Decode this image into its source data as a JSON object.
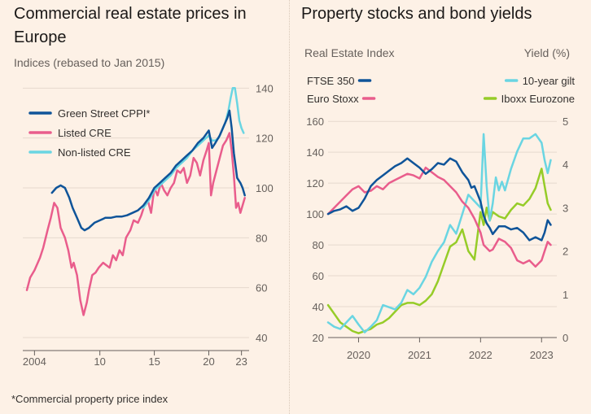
{
  "chart_data": [
    {
      "type": "line",
      "title": "Commercial real estate prices in Europe",
      "subtitle": "Indices (rebased to Jan 2015)",
      "note": "*Commercial property price index",
      "y_axis": "right",
      "ylim": [
        40,
        145
      ],
      "yticks": [
        40,
        60,
        80,
        100,
        120,
        140
      ],
      "xlim": [
        2003.3,
        2023.4
      ],
      "xticks": [
        {
          "value": 2004,
          "label": "2004"
        },
        {
          "value": 2010,
          "label": "10"
        },
        {
          "value": 2015,
          "label": "15"
        },
        {
          "value": 2020,
          "label": "20"
        },
        {
          "value": 2023,
          "label": "23"
        }
      ],
      "series": [
        {
          "name": "Green Street CPPI*",
          "color": "#0f5499",
          "x": [
            2005.6,
            2006.0,
            2006.4,
            2006.8,
            2007.2,
            2007.5,
            2007.9,
            2008.3,
            2008.6,
            2009.0,
            2009.5,
            2010.0,
            2010.5,
            2011.0,
            2011.5,
            2012.0,
            2012.5,
            2013.0,
            2013.5,
            2014.0,
            2014.5,
            2015.0,
            2015.5,
            2016.0,
            2016.5,
            2017.0,
            2017.5,
            2018.0,
            2018.5,
            2019.0,
            2019.5,
            2020.0,
            2020.3,
            2020.6,
            2021.0,
            2021.4,
            2021.7,
            2021.9,
            2022.1,
            2022.3,
            2022.6,
            2022.9,
            2023.1,
            2023.3
          ],
          "values": [
            98,
            100,
            101,
            100,
            96,
            92,
            88,
            84,
            83,
            84,
            86,
            87,
            88,
            88,
            88.5,
            88.5,
            89,
            90,
            91,
            93,
            96,
            100,
            102,
            104,
            106,
            109,
            111,
            113,
            115,
            118,
            120,
            123,
            116,
            118,
            121,
            125,
            128,
            131,
            124,
            114,
            104,
            102,
            100,
            97
          ]
        },
        {
          "name": "Listed CRE",
          "color": "#e95d8c",
          "x": [
            2003.3,
            2003.6,
            2004.0,
            2004.5,
            2004.8,
            2005.2,
            2005.5,
            2005.8,
            2006.1,
            2006.4,
            2006.8,
            2007.1,
            2007.4,
            2007.6,
            2007.9,
            2008.2,
            2008.5,
            2008.8,
            2009.0,
            2009.3,
            2009.6,
            2009.9,
            2010.3,
            2010.6,
            2010.9,
            2011.2,
            2011.5,
            2011.8,
            2012.1,
            2012.4,
            2012.8,
            2013.1,
            2013.5,
            2013.8,
            2014.1,
            2014.4,
            2014.7,
            2015.0,
            2015.3,
            2015.6,
            2015.9,
            2016.2,
            2016.5,
            2016.8,
            2017.1,
            2017.4,
            2017.7,
            2018.0,
            2018.3,
            2018.6,
            2018.9,
            2019.2,
            2019.5,
            2019.8,
            2020.0,
            2020.2,
            2020.4,
            2020.7,
            2021.0,
            2021.3,
            2021.6,
            2021.9,
            2022.1,
            2022.3,
            2022.5,
            2022.7,
            2022.9,
            2023.1,
            2023.3
          ],
          "values": [
            59,
            64,
            67,
            72,
            76,
            83,
            88,
            94,
            92,
            84,
            80,
            75,
            68,
            70,
            65,
            55,
            49,
            54,
            59,
            65,
            66,
            68,
            70,
            69,
            68,
            73,
            71,
            75,
            73,
            80,
            83,
            87,
            86,
            89,
            93,
            95,
            90,
            100,
            97,
            102,
            99,
            97,
            100,
            102,
            107,
            106,
            108,
            102,
            105,
            112,
            110,
            105,
            111,
            115,
            118,
            97,
            102,
            107,
            112,
            117,
            119,
            122,
            115,
            105,
            92,
            94,
            90,
            93,
            96
          ]
        },
        {
          "name": "Non-listed CRE",
          "color": "#6ad5e2",
          "x": [
            2014.0,
            2014.5,
            2015.0,
            2015.5,
            2016.0,
            2016.5,
            2017.0,
            2017.5,
            2018.0,
            2018.5,
            2019.0,
            2019.5,
            2020.0,
            2020.3,
            2020.6,
            2020.9,
            2021.2,
            2021.5,
            2021.8,
            2022.0,
            2022.2,
            2022.4,
            2022.6,
            2022.8,
            2023.0,
            2023.2
          ],
          "values": [
            92,
            95,
            99,
            101,
            103,
            105,
            108,
            110,
            112,
            115,
            117,
            119,
            121,
            119,
            119,
            120,
            123,
            126,
            131,
            136,
            140,
            140,
            134,
            127,
            124,
            122
          ]
        }
      ]
    },
    {
      "type": "line",
      "title": "Property stocks and bond yields",
      "ylabel_left": "Real Estate Index",
      "ylabel_right": "Yield (%)",
      "ylim_left": [
        20,
        168
      ],
      "yticks_left": [
        20,
        40,
        60,
        80,
        100,
        120,
        140,
        160
      ],
      "ylim_right": [
        0,
        5.28
      ],
      "yticks_right": [
        0,
        1,
        2,
        3,
        4,
        5
      ],
      "xlim": [
        2019.5,
        2023.25
      ],
      "xticks": [
        {
          "value": 2020.0,
          "label": "2020"
        },
        {
          "value": 2021.0,
          "label": "2021"
        },
        {
          "value": 2022.0,
          "label": "2022"
        },
        {
          "value": 2023.0,
          "label": "2023"
        }
      ],
      "series": [
        {
          "name": "FTSE 350",
          "color": "#0f5499",
          "axis": "left",
          "x": [
            2019.5,
            2019.6,
            2019.7,
            2019.8,
            2019.9,
            2020.0,
            2020.1,
            2020.2,
            2020.3,
            2020.4,
            2020.5,
            2020.6,
            2020.7,
            2020.8,
            2020.9,
            2021.0,
            2021.1,
            2021.2,
            2021.3,
            2021.4,
            2021.5,
            2021.6,
            2021.7,
            2021.8,
            2021.85,
            2021.9,
            2021.95,
            2022.0,
            2022.05,
            2022.1,
            2022.15,
            2022.2,
            2022.3,
            2022.4,
            2022.5,
            2022.6,
            2022.7,
            2022.8,
            2022.9,
            2023.0,
            2023.05,
            2023.1,
            2023.15
          ],
          "values": [
            100,
            102,
            103,
            105,
            102,
            104,
            110,
            118,
            122,
            125,
            128,
            131,
            133,
            136,
            133,
            130,
            126,
            129,
            133,
            132,
            136,
            134,
            127,
            122,
            117,
            118,
            113,
            108,
            99,
            94,
            91,
            87,
            92,
            92,
            90,
            91,
            88,
            83,
            85,
            83,
            88,
            96,
            93
          ]
        },
        {
          "name": "Euro Stoxx",
          "color": "#e95d8c",
          "axis": "left",
          "x": [
            2019.5,
            2019.6,
            2019.7,
            2019.8,
            2019.9,
            2020.0,
            2020.1,
            2020.2,
            2020.3,
            2020.4,
            2020.5,
            2020.6,
            2020.7,
            2020.8,
            2020.9,
            2021.0,
            2021.1,
            2021.2,
            2021.3,
            2021.4,
            2021.5,
            2021.6,
            2021.7,
            2021.8,
            2021.9,
            2022.0,
            2022.05,
            2022.1,
            2022.15,
            2022.2,
            2022.3,
            2022.4,
            2022.5,
            2022.6,
            2022.7,
            2022.8,
            2022.9,
            2023.0,
            2023.05,
            2023.1,
            2023.15
          ],
          "values": [
            100,
            104,
            108,
            112,
            116,
            118,
            114,
            115,
            118,
            116,
            120,
            122,
            124,
            126,
            125,
            123,
            130,
            127,
            124,
            122,
            118,
            114,
            108,
            104,
            97,
            88,
            80,
            78,
            76,
            77,
            84,
            82,
            78,
            70,
            68,
            70,
            66,
            70,
            76,
            82,
            80
          ]
        },
        {
          "name": "10-year gilt",
          "color": "#6ad5e2",
          "axis": "right",
          "x": [
            2019.5,
            2019.6,
            2019.7,
            2019.8,
            2019.9,
            2020.0,
            2020.1,
            2020.2,
            2020.3,
            2020.4,
            2020.5,
            2020.6,
            2020.7,
            2020.8,
            2020.9,
            2021.0,
            2021.1,
            2021.2,
            2021.3,
            2021.4,
            2021.5,
            2021.6,
            2021.7,
            2021.8,
            2021.9,
            2022.0,
            2022.05,
            2022.1,
            2022.15,
            2022.2,
            2022.25,
            2022.3,
            2022.35,
            2022.4,
            2022.5,
            2022.6,
            2022.7,
            2022.8,
            2022.9,
            2023.0,
            2023.05,
            2023.1,
            2023.15
          ],
          "values": [
            0.35,
            0.25,
            0.2,
            0.35,
            0.5,
            0.3,
            0.12,
            0.25,
            0.4,
            0.75,
            0.7,
            0.65,
            0.8,
            1.1,
            1.0,
            1.15,
            1.4,
            1.75,
            2.0,
            2.2,
            2.6,
            2.4,
            2.85,
            3.3,
            3.15,
            3.0,
            4.7,
            3.5,
            2.7,
            3.1,
            3.7,
            3.4,
            3.6,
            3.4,
            3.9,
            4.3,
            4.6,
            4.6,
            4.7,
            4.5,
            4.1,
            3.8,
            4.1
          ]
        },
        {
          "name": "Iboxx Eurozone",
          "color": "#96cc28",
          "axis": "right",
          "x": [
            2019.5,
            2019.6,
            2019.7,
            2019.8,
            2019.9,
            2020.0,
            2020.1,
            2020.2,
            2020.3,
            2020.4,
            2020.5,
            2020.6,
            2020.7,
            2020.8,
            2020.9,
            2021.0,
            2021.1,
            2021.2,
            2021.3,
            2021.4,
            2021.5,
            2021.6,
            2021.7,
            2021.8,
            2021.9,
            2022.0,
            2022.05,
            2022.1,
            2022.15,
            2022.2,
            2022.3,
            2022.4,
            2022.5,
            2022.6,
            2022.7,
            2022.8,
            2022.9,
            2023.0,
            2023.05,
            2023.1,
            2023.15
          ],
          "values": [
            0.75,
            0.55,
            0.35,
            0.25,
            0.15,
            0.1,
            0.15,
            0.2,
            0.3,
            0.35,
            0.45,
            0.6,
            0.75,
            0.8,
            0.8,
            0.75,
            0.85,
            1.0,
            1.3,
            1.7,
            2.1,
            2.2,
            2.5,
            2.0,
            1.8,
            2.9,
            2.6,
            3.0,
            2.7,
            2.9,
            2.8,
            2.75,
            2.95,
            3.1,
            3.05,
            3.2,
            3.45,
            3.9,
            3.5,
            3.1,
            2.95
          ]
        }
      ]
    }
  ]
}
